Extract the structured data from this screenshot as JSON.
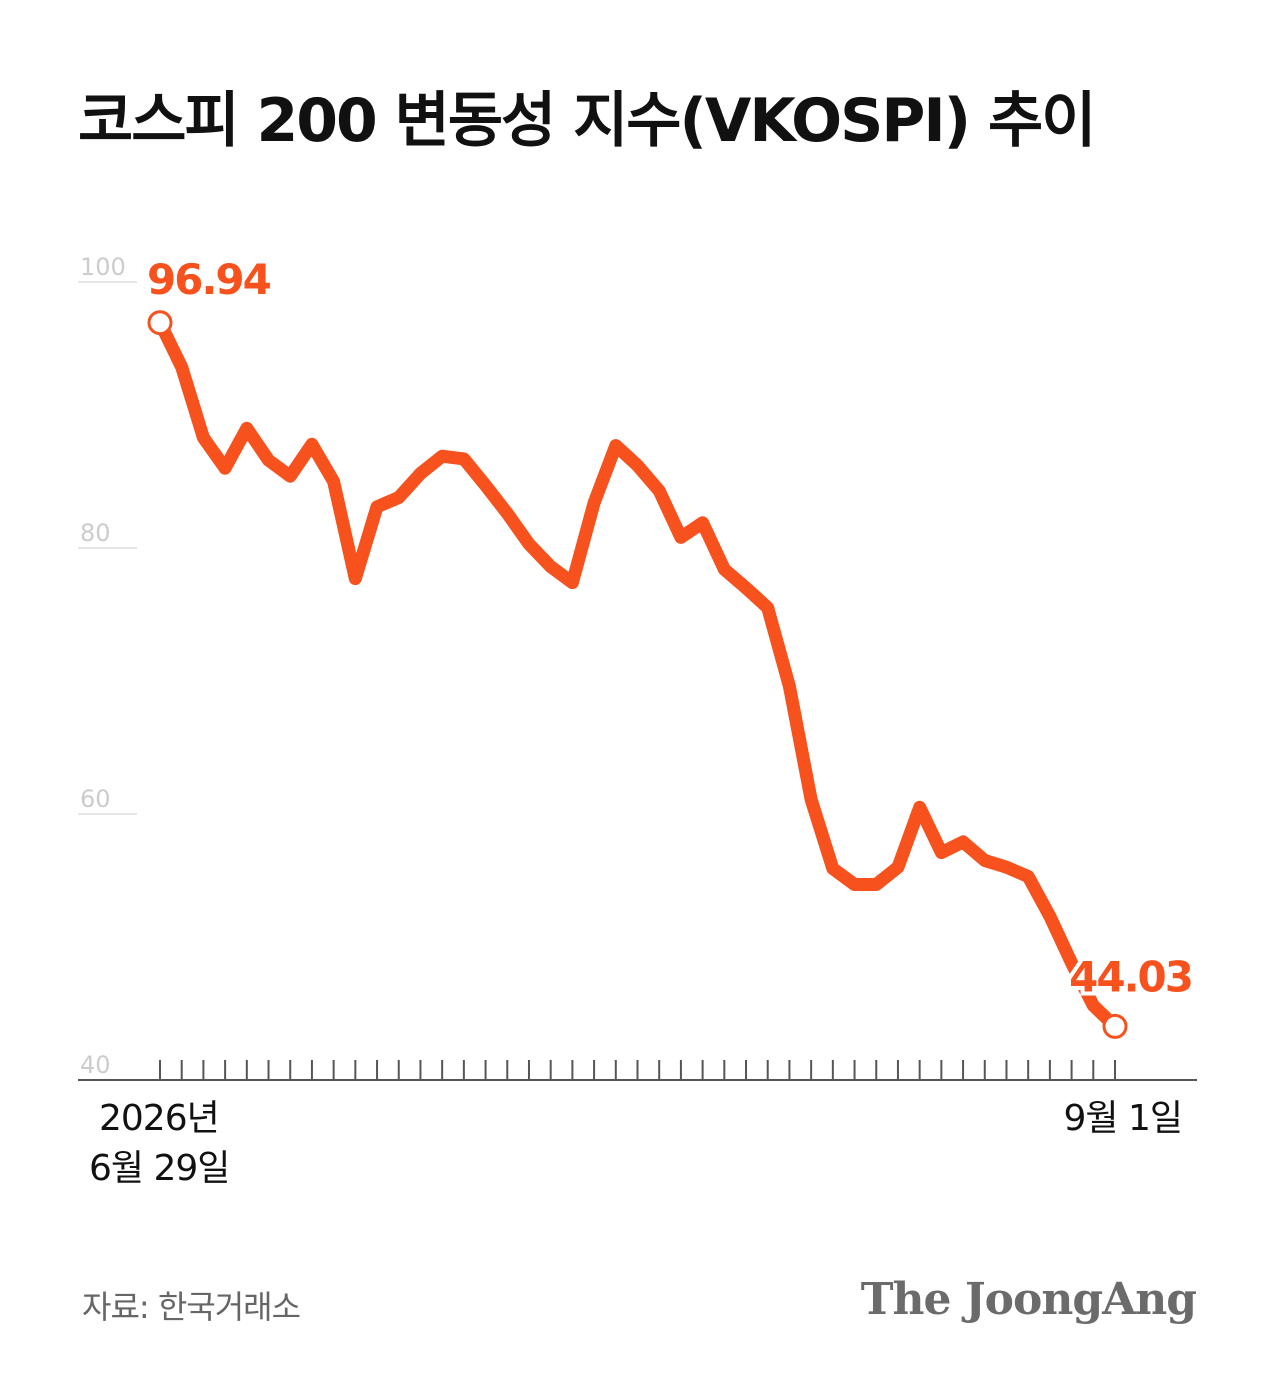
{
  "chart_data": {
    "type": "line",
    "title": "코스피 200 변동성 지수(VKOSPI) 추이",
    "ylim": [
      40,
      100
    ],
    "yticks": [
      "100",
      "80",
      "60",
      "40"
    ],
    "grid": true,
    "x_start_label": [
      "2026년",
      "6월 29일"
    ],
    "x_end_label": "9월 1일",
    "start_value_label": "96.94",
    "end_value_label": "44.03",
    "colors": {
      "line": "#F7511E",
      "grid": "#dddddd",
      "axis": "#555555",
      "tick_label": "#cccccc"
    },
    "values": [
      96.94,
      93.6,
      88.3,
      86.0,
      89.0,
      86.6,
      85.4,
      87.8,
      85.0,
      77.7,
      83.1,
      83.8,
      85.6,
      86.9,
      86.7,
      84.7,
      82.6,
      80.3,
      78.6,
      77.4,
      83.4,
      87.7,
      86.2,
      84.3,
      80.8,
      81.9,
      78.4,
      77.0,
      75.5,
      69.6,
      61.1,
      55.9,
      54.7,
      54.7,
      56.0,
      60.5,
      57.1,
      57.9,
      56.5,
      56.0,
      55.3,
      52.3,
      48.8,
      45.6,
      44.03
    ]
  },
  "footer": {
    "source": "자료: 한국거래소",
    "logo": "The JoongAng"
  }
}
